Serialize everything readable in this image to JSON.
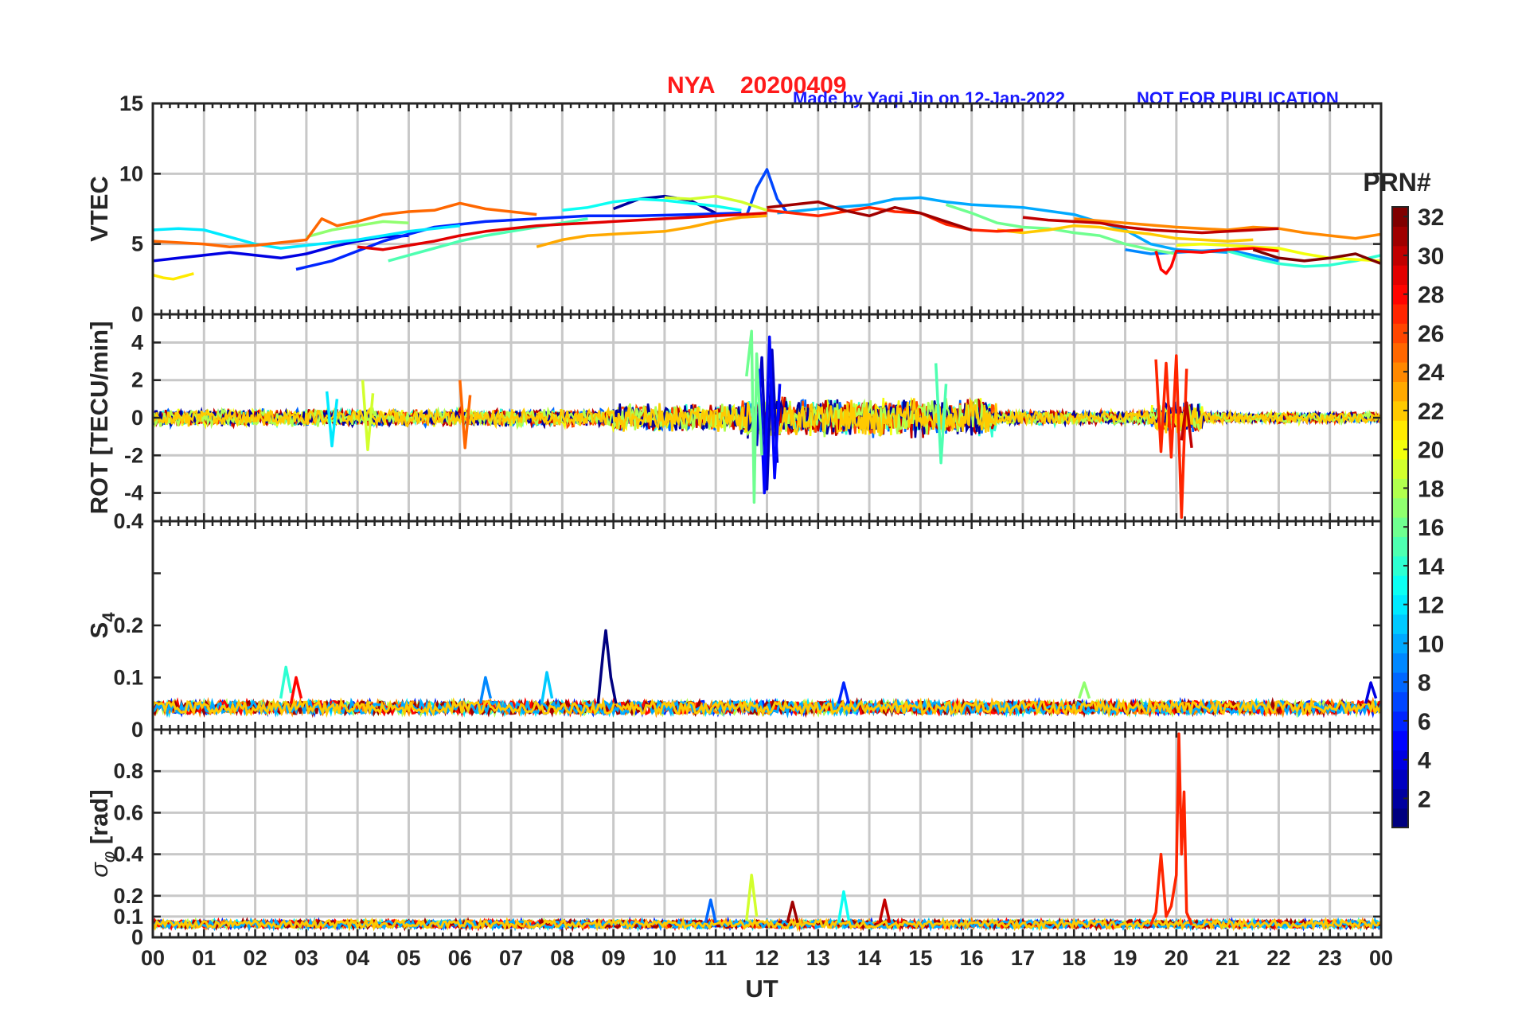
{
  "header": {
    "station": "NYA",
    "date": "20200409",
    "credit": "Made by Yaqi Jin on 12-Jan-2022",
    "notice": "NOT FOR PUBLICATION"
  },
  "colors": {
    "title": "#ff1a1a",
    "credit": "#1a1aff",
    "axes": "#262626",
    "grid": "#c8c8c8",
    "colormap": "jet"
  },
  "xaxis": {
    "label": "UT",
    "range": [
      0,
      24
    ],
    "ticks": [
      "00",
      "01",
      "02",
      "03",
      "04",
      "05",
      "06",
      "07",
      "08",
      "09",
      "10",
      "11",
      "12",
      "13",
      "14",
      "15",
      "16",
      "17",
      "18",
      "19",
      "20",
      "21",
      "22",
      "23",
      "00"
    ]
  },
  "colorbar": {
    "label": "PRN#",
    "range": [
      1,
      32
    ],
    "ticks": [
      2,
      4,
      6,
      8,
      10,
      12,
      14,
      16,
      18,
      20,
      22,
      24,
      26,
      28,
      30,
      32
    ]
  },
  "chart_data": [
    {
      "id": "vtec",
      "type": "line",
      "ylabel": "VTEC",
      "ylim": [
        0,
        15
      ],
      "yticks": [
        0,
        5,
        10,
        15
      ],
      "grid": true,
      "series": [
        {
          "prn": 2,
          "x": [
            9,
            9.5,
            10,
            10.5,
            11
          ],
          "y": [
            7.5,
            8.2,
            8.4,
            8.1,
            7.2
          ]
        },
        {
          "prn": 4,
          "x": [
            0,
            0.5,
            1,
            1.5,
            2,
            2.5,
            3,
            3.5,
            4,
            4.5,
            5
          ],
          "y": [
            3.8,
            4.0,
            4.2,
            4.4,
            4.2,
            4.0,
            4.3,
            4.8,
            5.2,
            5.5,
            5.6
          ]
        },
        {
          "prn": 6,
          "x": [
            2.8,
            3.5,
            4.5,
            5.5,
            6.5,
            7.5,
            8.5,
            9.5,
            10.5,
            11.5
          ],
          "y": [
            3.2,
            3.8,
            5.2,
            6.2,
            6.6,
            6.8,
            7.0,
            7.0,
            7.1,
            7.2
          ]
        },
        {
          "prn": 7,
          "x": [
            11.6,
            11.8,
            12,
            12.2,
            12.4
          ],
          "y": [
            7.0,
            9.0,
            10.3,
            8.2,
            7.2
          ]
        },
        {
          "prn": 9,
          "x": [
            19,
            19.5,
            20,
            20.5,
            21,
            21.5,
            22
          ],
          "y": [
            4.6,
            4.3,
            4.4,
            4.5,
            4.6,
            4.2,
            3.8
          ]
        },
        {
          "prn": 10,
          "x": [
            12.2,
            13,
            14,
            14.5,
            15,
            15.5,
            16,
            17,
            18,
            19,
            19.5,
            20,
            20.5,
            21
          ],
          "y": [
            7.2,
            7.5,
            7.8,
            8.2,
            8.3,
            8.0,
            7.8,
            7.6,
            7.1,
            6.0,
            5.0,
            4.6,
            4.5,
            4.4
          ]
        },
        {
          "prn": 12,
          "x": [
            0,
            0.5,
            1,
            1.5,
            2,
            2.5,
            3,
            3.5,
            4,
            4.5,
            5,
            5.5,
            6
          ],
          "y": [
            6.0,
            6.1,
            6.0,
            5.5,
            5.0,
            4.7,
            4.9,
            5.1,
            5.3,
            5.6,
            5.9,
            6.1,
            6.3
          ]
        },
        {
          "prn": 13,
          "x": [
            8,
            8.5,
            9,
            9.5,
            10,
            10.5,
            11,
            11.5
          ],
          "y": [
            7.4,
            7.6,
            8.0,
            8.2,
            8.1,
            7.9,
            7.7,
            7.4
          ]
        },
        {
          "prn": 14,
          "x": [
            21,
            21.5,
            22,
            22.5,
            23,
            23.5,
            24
          ],
          "y": [
            4.5,
            4.0,
            3.6,
            3.4,
            3.5,
            3.8,
            4.2
          ]
        },
        {
          "prn": 15,
          "x": [
            4.6,
            5,
            5.5,
            6,
            6.5,
            7,
            7.5,
            8,
            8.5
          ],
          "y": [
            3.8,
            4.2,
            4.7,
            5.2,
            5.6,
            5.9,
            6.2,
            6.5,
            6.8
          ]
        },
        {
          "prn": 16,
          "x": [
            15.5,
            16,
            16.5,
            17,
            17.5,
            18,
            18.5,
            19,
            19.5,
            20
          ],
          "y": [
            7.8,
            7.2,
            6.5,
            6.2,
            6.1,
            5.8,
            5.6,
            5.0,
            4.6,
            4.3
          ]
        },
        {
          "prn": 17,
          "x": [
            3,
            3.5,
            4,
            4.5,
            5
          ],
          "y": [
            5.5,
            6.0,
            6.3,
            6.6,
            6.5
          ]
        },
        {
          "prn": 19,
          "x": [
            10,
            10.5,
            11,
            11.5,
            12
          ],
          "y": [
            8.3,
            8.2,
            8.4,
            8.0,
            7.4
          ]
        },
        {
          "prn": 20,
          "x": [
            20,
            20.5,
            21,
            21.5,
            22,
            22.5,
            23,
            23.5,
            24
          ],
          "y": [
            4.9,
            5.0,
            4.9,
            4.8,
            4.7,
            4.3,
            4.0,
            3.9,
            3.8
          ]
        },
        {
          "prn": 21,
          "x": [
            0,
            0.2,
            0.4,
            0.6,
            0.8
          ],
          "y": [
            2.8,
            2.6,
            2.5,
            2.7,
            2.9
          ]
        },
        {
          "prn": 22,
          "x": [
            16.5,
            17,
            17.5,
            18,
            18.5,
            19,
            19.5,
            20,
            20.5,
            21,
            21.5
          ],
          "y": [
            6.0,
            5.8,
            6.0,
            6.3,
            6.2,
            5.9,
            5.7,
            5.4,
            5.3,
            5.2,
            5.3
          ]
        },
        {
          "prn": 23,
          "x": [
            7.5,
            8,
            8.5,
            9,
            9.5,
            10,
            10.5,
            11,
            11.5,
            12
          ],
          "y": [
            4.8,
            5.3,
            5.6,
            5.7,
            5.8,
            5.9,
            6.2,
            6.6,
            6.9,
            7.0
          ]
        },
        {
          "prn": 24,
          "x": [
            18,
            19,
            20,
            21,
            21.5,
            22,
            22.5,
            23,
            23.5,
            24
          ],
          "y": [
            6.8,
            6.5,
            6.2,
            6.0,
            6.2,
            6.1,
            5.8,
            5.6,
            5.4,
            5.7
          ]
        },
        {
          "prn": 25,
          "x": [
            0,
            0.5,
            1,
            1.5,
            2,
            2.5,
            3,
            3.3,
            3.6,
            4,
            4.5,
            5,
            5.5,
            6,
            6.5,
            7,
            7.5
          ],
          "y": [
            5.2,
            5.1,
            5.0,
            4.8,
            4.9,
            5.1,
            5.3,
            6.8,
            6.3,
            6.6,
            7.1,
            7.3,
            7.4,
            7.9,
            7.5,
            7.3,
            7.1
          ]
        },
        {
          "prn": 27,
          "x": [
            12,
            12.5,
            13,
            13.5,
            14,
            14.5,
            15,
            15.5,
            16,
            16.5,
            17
          ],
          "y": [
            7.4,
            7.2,
            7.0,
            7.3,
            7.6,
            7.3,
            7.2,
            6.4,
            6.0,
            5.9,
            6.0
          ]
        },
        {
          "prn": 28,
          "x": [
            19.6,
            19.7,
            19.8,
            19.9,
            20,
            20.5,
            21,
            21.5,
            22
          ],
          "y": [
            4.5,
            3.2,
            2.9,
            3.4,
            4.5,
            4.4,
            4.6,
            4.7,
            4.5
          ]
        },
        {
          "prn": 29,
          "x": [
            4,
            4.5,
            5,
            5.5,
            6,
            6.5,
            7,
            7.5,
            8,
            8.5,
            9,
            9.5,
            10,
            10.5,
            11,
            11.5,
            12
          ],
          "y": [
            4.8,
            4.6,
            4.9,
            5.2,
            5.6,
            5.9,
            6.1,
            6.3,
            6.4,
            6.5,
            6.6,
            6.7,
            6.8,
            6.9,
            7.0,
            7.1,
            7.2
          ]
        },
        {
          "prn": 30,
          "x": [
            17,
            17.5,
            18,
            18.5,
            19,
            19.5,
            20,
            20.5,
            21,
            21.5,
            22
          ],
          "y": [
            6.9,
            6.7,
            6.6,
            6.5,
            6.2,
            6.0,
            5.9,
            5.8,
            5.9,
            6.0,
            6.1
          ]
        },
        {
          "prn": 31,
          "x": [
            12,
            12.5,
            13,
            13.5,
            14,
            14.5,
            15,
            15.5,
            16
          ],
          "y": [
            7.6,
            7.8,
            8.0,
            7.4,
            7.0,
            7.6,
            7.2,
            6.6,
            6.0
          ]
        },
        {
          "prn": 32,
          "x": [
            21.5,
            22,
            22.5,
            23,
            23.5,
            24
          ],
          "y": [
            4.6,
            4.0,
            3.8,
            4.0,
            4.3,
            3.6
          ]
        }
      ]
    },
    {
      "id": "rot",
      "type": "line",
      "ylabel": "ROT [TECU/min]",
      "ylim": [
        -5.5,
        5.5
      ],
      "yticks": [
        -4,
        -2,
        0,
        2,
        4
      ],
      "grid": true,
      "series": [
        {
          "prn": 3,
          "x": [
            11.8,
            11.9,
            12.0,
            12.1,
            12.2
          ],
          "y": [
            -1.5,
            3.2,
            -3.8,
            3.6,
            -2.4
          ]
        },
        {
          "prn": 5,
          "x": [
            11.85,
            11.95,
            12.05,
            12.15,
            12.25
          ],
          "y": [
            2.6,
            -4.0,
            4.3,
            -3.2,
            1.8
          ]
        },
        {
          "prn": 12,
          "x": [
            3.4,
            3.5,
            3.6
          ],
          "y": [
            1.4,
            -1.5,
            1.0
          ]
        },
        {
          "prn": 16,
          "x": [
            11.6,
            11.7,
            11.75,
            11.8,
            11.9
          ],
          "y": [
            2.2,
            4.6,
            -4.5,
            3.4,
            -2.0
          ]
        },
        {
          "prn": 15,
          "x": [
            15.3,
            15.4,
            15.5
          ],
          "y": [
            2.9,
            -2.4,
            1.8
          ]
        },
        {
          "prn": 19,
          "x": [
            4.1,
            4.2,
            4.3
          ],
          "y": [
            2.0,
            -1.7,
            1.3
          ]
        },
        {
          "prn": 25,
          "x": [
            6.0,
            6.1,
            6.2
          ],
          "y": [
            2.0,
            -1.6,
            1.2
          ]
        },
        {
          "prn": 27,
          "x": [
            19.6,
            19.7,
            19.8,
            19.9,
            20.0,
            20.1,
            20.2
          ],
          "y": [
            3.1,
            -1.8,
            2.9,
            -2.1,
            3.3,
            -5.3,
            2.6
          ]
        },
        {
          "prn": 30,
          "x": [
            20.1,
            20.2,
            20.3
          ],
          "y": [
            -1.2,
            0.8,
            -1.6
          ]
        }
      ],
      "envelope": [
        {
          "from": 0,
          "to": 9,
          "amp": 0.5
        },
        {
          "from": 9,
          "to": 11.5,
          "amp": 0.8
        },
        {
          "from": 11.5,
          "to": 12.5,
          "amp": 1.2
        },
        {
          "from": 12.5,
          "to": 16.5,
          "amp": 1.1
        },
        {
          "from": 16.5,
          "to": 19.5,
          "amp": 0.4
        },
        {
          "from": 19.5,
          "to": 20.5,
          "amp": 0.9
        },
        {
          "from": 20.5,
          "to": 24,
          "amp": 0.3
        }
      ]
    },
    {
      "id": "s4",
      "type": "line",
      "ylabel": "S4",
      "ylim": [
        0,
        0.4
      ],
      "yticks": [
        0,
        0.1,
        0.2,
        0.3,
        0.4
      ],
      "yticklabels": [
        "0",
        "0.1",
        "0.2",
        "",
        "0.4"
      ],
      "grid": false,
      "baseline": 0.04,
      "series": [
        {
          "prn": 1,
          "x": [
            8.7,
            8.8,
            8.85,
            8.95,
            9.05
          ],
          "y": [
            0.05,
            0.15,
            0.19,
            0.1,
            0.05
          ]
        },
        {
          "prn": 14,
          "x": [
            2.5,
            2.6,
            2.7
          ],
          "y": [
            0.06,
            0.12,
            0.07
          ]
        },
        {
          "prn": 28,
          "x": [
            2.7,
            2.8,
            2.9
          ],
          "y": [
            0.05,
            0.1,
            0.06
          ]
        },
        {
          "prn": 11,
          "x": [
            7.6,
            7.7,
            7.8
          ],
          "y": [
            0.05,
            0.11,
            0.06
          ]
        },
        {
          "prn": 9,
          "x": [
            6.4,
            6.5,
            6.6
          ],
          "y": [
            0.05,
            0.1,
            0.06
          ]
        },
        {
          "prn": 6,
          "x": [
            13.4,
            13.5,
            13.6
          ],
          "y": [
            0.05,
            0.09,
            0.05
          ]
        },
        {
          "prn": 17,
          "x": [
            18.1,
            18.2,
            18.3
          ],
          "y": [
            0.06,
            0.09,
            0.06
          ]
        },
        {
          "prn": 4,
          "x": [
            23.7,
            23.8,
            23.9
          ],
          "y": [
            0.05,
            0.09,
            0.06
          ]
        }
      ]
    },
    {
      "id": "sigma_phi",
      "type": "line",
      "ylabel": "σφ [rad]",
      "ylim": [
        0,
        1
      ],
      "yticks": [
        0,
        0.1,
        0.2,
        0.4,
        0.6,
        0.8
      ],
      "yticklabels": [
        "0",
        "0.1",
        "0.2",
        "0.4",
        "0.6",
        "0.8"
      ],
      "grid": true,
      "baseline": 0.06,
      "series": [
        {
          "prn": 27,
          "x": [
            19.5,
            19.6,
            19.7,
            19.8,
            19.9,
            20.0,
            20.05,
            20.1,
            20.15,
            20.2,
            20.3
          ],
          "y": [
            0.06,
            0.12,
            0.4,
            0.1,
            0.15,
            0.3,
            0.98,
            0.4,
            0.7,
            0.12,
            0.06
          ]
        },
        {
          "prn": 19,
          "x": [
            11.6,
            11.7,
            11.8
          ],
          "y": [
            0.08,
            0.3,
            0.1
          ]
        },
        {
          "prn": 13,
          "x": [
            13.4,
            13.5,
            13.6
          ],
          "y": [
            0.07,
            0.22,
            0.08
          ]
        },
        {
          "prn": 30,
          "x": [
            14.2,
            14.3,
            14.4
          ],
          "y": [
            0.07,
            0.18,
            0.07
          ]
        },
        {
          "prn": 8,
          "x": [
            10.8,
            10.9,
            11.0
          ],
          "y": [
            0.07,
            0.18,
            0.07
          ]
        },
        {
          "prn": 31,
          "x": [
            12.4,
            12.5,
            12.6
          ],
          "y": [
            0.07,
            0.17,
            0.07
          ]
        }
      ]
    }
  ]
}
